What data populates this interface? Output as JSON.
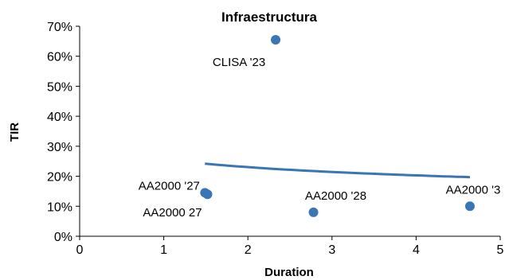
{
  "chart_data": {
    "type": "scatter",
    "title": "Infraestructura",
    "xlabel": "Duration",
    "ylabel": "TIR",
    "xlim": [
      0,
      5
    ],
    "ylim": [
      0,
      0.7
    ],
    "x_ticks": [
      "0",
      "1",
      "2",
      "3",
      "4",
      "5"
    ],
    "y_ticks": [
      "0%",
      "10%",
      "20%",
      "30%",
      "40%",
      "50%",
      "60%",
      "70%"
    ],
    "grid": false,
    "legend": "none",
    "points": [
      {
        "label": "CLISA '23",
        "x": 2.33,
        "y": 0.655
      },
      {
        "label": "AA2000 '27",
        "x": 1.49,
        "y": 0.145
      },
      {
        "label": "AA2000 27",
        "x": 1.52,
        "y": 0.14
      },
      {
        "label": "AA2000 '28",
        "x": 2.78,
        "y": 0.08
      },
      {
        "label": "AA2000 '3",
        "x": 4.64,
        "y": 0.1
      }
    ],
    "trendline": {
      "type": "logarithmic",
      "x_range": [
        1.49,
        4.64
      ],
      "y_range": [
        0.242,
        0.197
      ]
    },
    "colors": {
      "marker": "#3a75b5",
      "trendline": "#3a75b5",
      "axis": "#000000"
    }
  }
}
